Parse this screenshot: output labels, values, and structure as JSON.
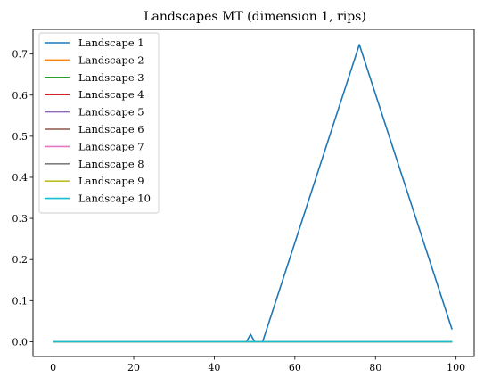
{
  "chart_data": {
    "type": "line",
    "title": "Landscapes MT (dimension 1, rips)",
    "xlabel": "",
    "ylabel": "",
    "xlim": [
      -5,
      104.5
    ],
    "ylim": [
      -0.036,
      0.76
    ],
    "xticks": [
      0,
      20,
      40,
      60,
      80,
      100
    ],
    "yticks": [
      0.0,
      0.1,
      0.2,
      0.3,
      0.4,
      0.5,
      0.6,
      0.7
    ],
    "grid": false,
    "legend_position": "upper-left",
    "series": [
      {
        "name": "Landscape 1",
        "color": "#1f77b4",
        "x": [
          0,
          48,
          49,
          50,
          52,
          76,
          99
        ],
        "y": [
          0,
          0,
          0.018,
          0,
          0,
          0.723,
          0.03
        ]
      },
      {
        "name": "Landscape 2",
        "color": "#ff7f0e",
        "x": [
          0,
          99
        ],
        "y": [
          0,
          0
        ]
      },
      {
        "name": "Landscape 3",
        "color": "#2ca02c",
        "x": [
          0,
          99
        ],
        "y": [
          0,
          0
        ]
      },
      {
        "name": "Landscape 4",
        "color": "#d62728",
        "x": [
          0,
          99
        ],
        "y": [
          0,
          0
        ]
      },
      {
        "name": "Landscape 5",
        "color": "#9467bd",
        "x": [
          0,
          99
        ],
        "y": [
          0,
          0
        ]
      },
      {
        "name": "Landscape 6",
        "color": "#8c564b",
        "x": [
          0,
          99
        ],
        "y": [
          0,
          0
        ]
      },
      {
        "name": "Landscape 7",
        "color": "#e377c2",
        "x": [
          0,
          99
        ],
        "y": [
          0,
          0
        ]
      },
      {
        "name": "Landscape 8",
        "color": "#7f7f7f",
        "x": [
          0,
          99
        ],
        "y": [
          0,
          0
        ]
      },
      {
        "name": "Landscape 9",
        "color": "#bcbd22",
        "x": [
          0,
          99
        ],
        "y": [
          0,
          0
        ]
      },
      {
        "name": "Landscape 10",
        "color": "#17becf",
        "x": [
          0,
          99
        ],
        "y": [
          0,
          0
        ]
      }
    ]
  }
}
